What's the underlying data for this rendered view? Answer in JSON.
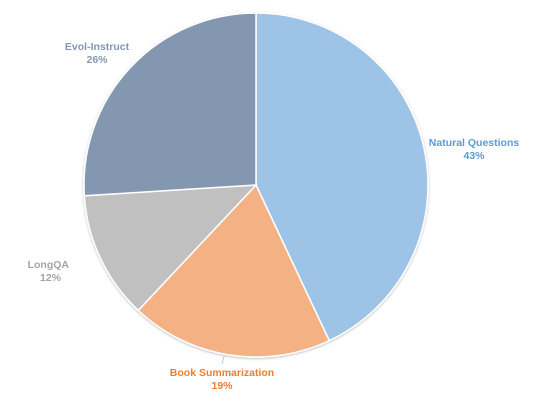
{
  "chart_data": {
    "type": "pie",
    "title": "",
    "slices": [
      {
        "label": "Natural Questions",
        "value": 43,
        "display": "43%",
        "color": "#9dc3e6",
        "label_color": "#5b9bd5"
      },
      {
        "label": "Book Summarization",
        "value": 19,
        "display": "19%",
        "color": "#f4b183",
        "label_color": "#ed7d31"
      },
      {
        "label": "LongQA",
        "value": 12,
        "display": "12%",
        "color": "#c0c0c0",
        "label_color": "#a5a5a5"
      },
      {
        "label": "Evol-Instruct",
        "value": 26,
        "display": "26%",
        "color": "#8497b0",
        "label_color": "#8497b0"
      }
    ],
    "start_angle": "12 o'clock",
    "direction": "clockwise",
    "legend": "none"
  }
}
